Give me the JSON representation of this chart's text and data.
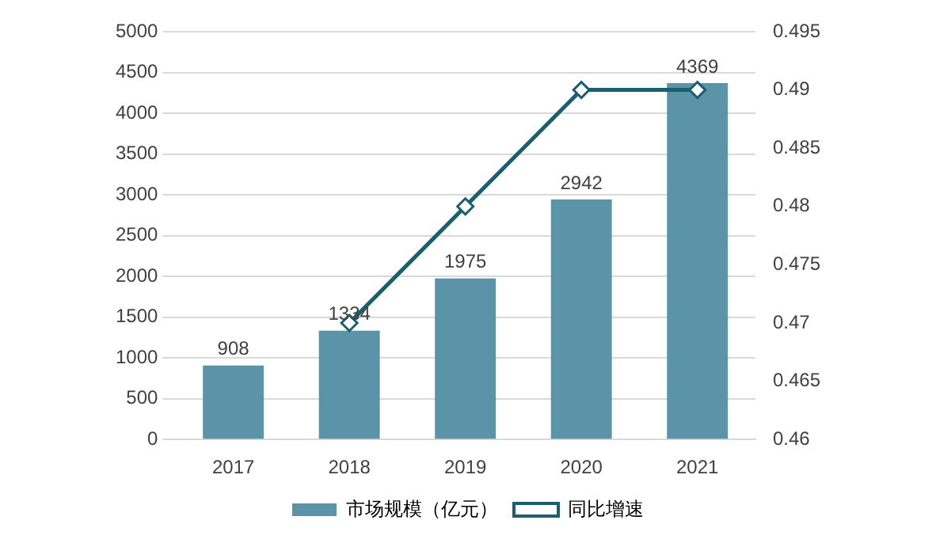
{
  "chart_data": {
    "type": "bar",
    "categories": [
      "2017",
      "2018",
      "2019",
      "2020",
      "2021"
    ],
    "series": [
      {
        "name": "市场规模（亿元）",
        "color": "#5b93a9",
        "values": [
          908,
          1334,
          1975,
          2942,
          4369
        ]
      },
      {
        "name": "同比增速",
        "type": "line",
        "axis": "y2",
        "color": "#1d5d70",
        "marker": "diamond",
        "values": [
          null,
          0.47,
          0.48,
          0.49,
          0.49
        ]
      }
    ],
    "ylim": [
      0,
      5000
    ],
    "yticks": [
      0,
      500,
      1000,
      1500,
      2000,
      2500,
      3000,
      3500,
      4000,
      4500,
      5000
    ],
    "y2lim": [
      0.46,
      0.495
    ],
    "y2ticks": [
      0.46,
      0.465,
      0.47,
      0.475,
      0.48,
      0.485,
      0.49,
      0.495
    ],
    "grid": "y",
    "legend": "bottom",
    "value_labels": [
      "908",
      "1334",
      "1975",
      "2942",
      "4369"
    ]
  }
}
